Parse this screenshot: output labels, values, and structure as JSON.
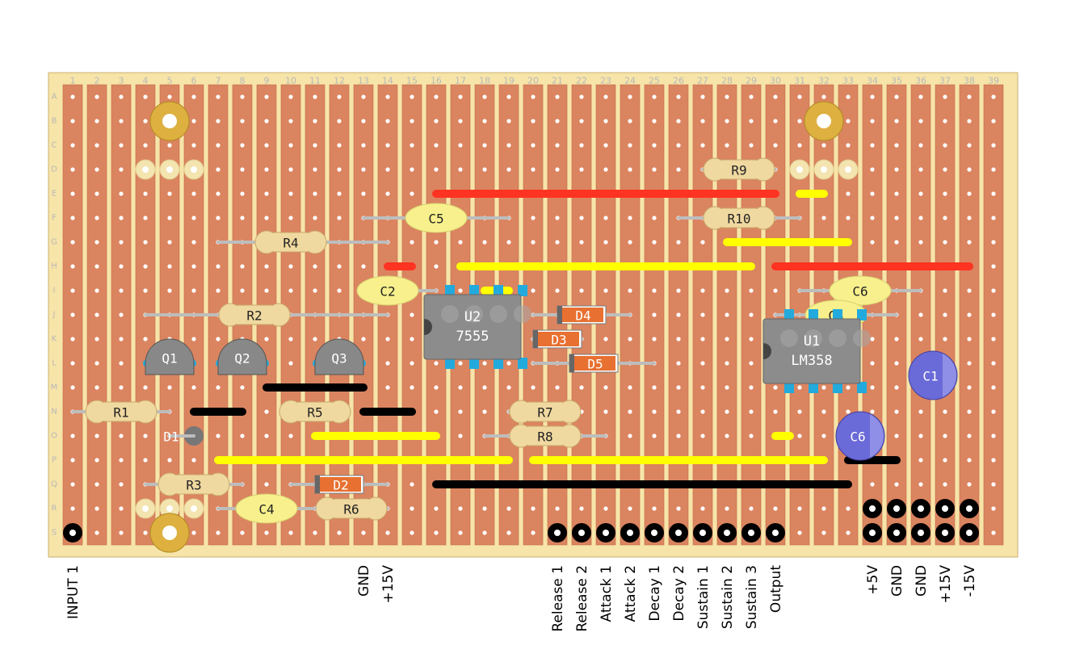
{
  "board": {
    "colors": {
      "board": "#f7e4a8",
      "strip": "#db8460",
      "strip_edge": "#c06a48",
      "hole": "#ffffff",
      "red": "#ff3322",
      "yellow": "#ffff00",
      "black": "#000000",
      "resistor": "#f0d9a0",
      "cap": "#f7f08c",
      "electro": "#6a6ad8",
      "transistor": "#888888",
      "ic": "#8c8c8c",
      "pin": "#22aadd",
      "diode": "#e87030",
      "pad": "#ddb040"
    },
    "column_labels": [
      "1",
      "2",
      "3",
      "4",
      "5",
      "6",
      "7",
      "8",
      "9",
      "10",
      "11",
      "12",
      "13",
      "14",
      "15",
      "16",
      "17",
      "18",
      "19",
      "20",
      "21",
      "22",
      "23",
      "24",
      "25",
      "26",
      "27",
      "28",
      "29",
      "30",
      "31",
      "32",
      "33",
      "34",
      "35",
      "36",
      "37",
      "38",
      "39"
    ],
    "row_labels": [
      "A",
      "B",
      "C",
      "D",
      "E",
      "F",
      "G",
      "H",
      "I",
      "J",
      "K",
      "L",
      "M",
      "N",
      "O",
      "P",
      "Q",
      "R",
      "S"
    ]
  },
  "wires": [
    {
      "color": "red",
      "row": 4,
      "from": 16,
      "to": 30
    },
    {
      "color": "yellow",
      "row": 4,
      "from": 31,
      "to": 32
    },
    {
      "color": "yellow",
      "row": 6,
      "from": 28,
      "to": 33
    },
    {
      "color": "red",
      "row": 7,
      "from": 14,
      "to": 15
    },
    {
      "color": "yellow",
      "row": 7,
      "from": 17,
      "to": 29
    },
    {
      "color": "red",
      "row": 7,
      "from": 30,
      "to": 38
    },
    {
      "color": "yellow",
      "row": 8,
      "from": 18,
      "to": 19
    },
    {
      "color": "black",
      "row": 12,
      "from": 9,
      "to": 13
    },
    {
      "color": "black",
      "row": 13,
      "from": 6,
      "to": 8
    },
    {
      "color": "black",
      "row": 13,
      "from": 13,
      "to": 15
    },
    {
      "color": "yellow",
      "row": 14,
      "from": 11,
      "to": 16
    },
    {
      "color": "yellow",
      "row": 14,
      "from": 30,
      "to": 30.6
    },
    {
      "color": "yellow",
      "row": 15,
      "from": 7,
      "to": 19
    },
    {
      "color": "yellow",
      "row": 15,
      "from": 20,
      "to": 32
    },
    {
      "color": "black",
      "row": 15,
      "from": 33,
      "to": 35
    },
    {
      "color": "black",
      "row": 16,
      "from": 16,
      "to": 33
    }
  ],
  "resistors": [
    {
      "label": "R1",
      "row": 13,
      "from": 1,
      "to": 5,
      "body": 3
    },
    {
      "label": "R2",
      "row": 9,
      "from": 4,
      "to": 14,
      "body": 8.5
    },
    {
      "label": "R3",
      "row": 16,
      "from": 4,
      "to": 8,
      "body": 6
    },
    {
      "label": "R4",
      "row": 6,
      "from": 7,
      "to": 14,
      "body": 10
    },
    {
      "label": "R5",
      "row": 13,
      "from": 10,
      "to": 12,
      "body": 11
    },
    {
      "label": "R6",
      "row": 17,
      "from": 12,
      "to": 14,
      "body": 12.5
    },
    {
      "label": "R7",
      "row": 13,
      "from": 19,
      "to": 21,
      "body": 20.5
    },
    {
      "label": "R8",
      "row": 14,
      "from": 18,
      "to": 23,
      "body": 20.5
    },
    {
      "label": "R9",
      "row": 3,
      "from": 27,
      "to": 30,
      "body": 28.5
    },
    {
      "label": "R10",
      "row": 5,
      "from": 26,
      "to": 31,
      "body": 28.5
    }
  ],
  "capacitors": [
    {
      "label": "C5",
      "row": 5,
      "from": 13,
      "to": 19,
      "body": 16
    },
    {
      "label": "C2",
      "row": 8,
      "from": 13,
      "to": 16,
      "body": 14
    },
    {
      "label": "C4",
      "row": 17,
      "from": 7,
      "to": 11,
      "body": 9
    },
    {
      "label": "C6",
      "row": 8,
      "from": 31,
      "to": 36,
      "body": 33.5
    },
    {
      "label": "C3",
      "row": 9,
      "from": 30,
      "to": 35,
      "body": 32.5
    }
  ],
  "electrolytics": [
    {
      "label": "C1",
      "col": 36.5,
      "row": 11.5,
      "r": 30
    },
    {
      "label": "C6",
      "col": 33.5,
      "row": 14,
      "r": 30
    }
  ],
  "diodes": [
    {
      "label": "D2",
      "row": 16,
      "from": 10,
      "to": 14,
      "body": 12
    },
    {
      "label": "D4",
      "row": 9,
      "from": 20,
      "to": 24,
      "body": 22
    },
    {
      "label": "D3",
      "row": 10,
      "from": 20,
      "to": 22,
      "body": 21
    },
    {
      "label": "D5",
      "row": 11,
      "from": 20,
      "to": 25,
      "body": 22.5
    }
  ],
  "diode_small": {
    "label": "D1",
    "row": 14,
    "col": 6
  },
  "transistors": [
    {
      "label": "Q1",
      "col": 5,
      "row": 11
    },
    {
      "label": "Q2",
      "col": 8,
      "row": 11
    },
    {
      "label": "Q3",
      "col": 12,
      "row": 11
    }
  ],
  "ics": [
    {
      "name": "U2",
      "part": "7555",
      "col": 17,
      "row": 10
    },
    {
      "name": "U1",
      "part": "LM358",
      "col": 31,
      "row": 11
    }
  ],
  "pots": [
    {
      "col": 5,
      "row": 1
    },
    {
      "col": 5,
      "row": 18
    },
    {
      "col": 32,
      "row": 1
    }
  ],
  "pot_pads": [
    {
      "row": 3,
      "cols": [
        4,
        5,
        6
      ]
    },
    {
      "row": 17,
      "cols": [
        4,
        5,
        6
      ]
    },
    {
      "row": 3,
      "cols": [
        31,
        32,
        33
      ]
    }
  ],
  "terminals": [
    {
      "col": 1,
      "row": 18
    },
    {
      "col": 21,
      "row": 18
    },
    {
      "col": 22,
      "row": 18
    },
    {
      "col": 23,
      "row": 18
    },
    {
      "col": 24,
      "row": 18
    },
    {
      "col": 25,
      "row": 18
    },
    {
      "col": 26,
      "row": 18
    },
    {
      "col": 27,
      "row": 18
    },
    {
      "col": 28,
      "row": 18
    },
    {
      "col": 29,
      "row": 18
    },
    {
      "col": 30,
      "row": 18
    },
    {
      "col": 34,
      "row": 17
    },
    {
      "col": 35,
      "row": 17
    },
    {
      "col": 36,
      "row": 17
    },
    {
      "col": 37,
      "row": 17
    },
    {
      "col": 38,
      "row": 17
    },
    {
      "col": 34,
      "row": 18
    },
    {
      "col": 35,
      "row": 18
    },
    {
      "col": 36,
      "row": 18
    },
    {
      "col": 37,
      "row": 18
    },
    {
      "col": 38,
      "row": 18
    }
  ],
  "bottom_labels": [
    {
      "col": 1,
      "text": "INPUT 1"
    },
    {
      "col": 13,
      "text": "GND"
    },
    {
      "col": 14,
      "text": "+15V"
    },
    {
      "col": 21,
      "text": "Release 1"
    },
    {
      "col": 22,
      "text": "Release 2"
    },
    {
      "col": 23,
      "text": "Attack 1"
    },
    {
      "col": 24,
      "text": "Attack 2"
    },
    {
      "col": 25,
      "text": "Decay 1"
    },
    {
      "col": 26,
      "text": "Decay 2"
    },
    {
      "col": 27,
      "text": "Sustain 1"
    },
    {
      "col": 28,
      "text": "Sustain 2"
    },
    {
      "col": 29,
      "text": "Sustain 3"
    },
    {
      "col": 30,
      "text": "Output"
    },
    {
      "col": 34,
      "text": "+5V"
    },
    {
      "col": 35,
      "text": "GND"
    },
    {
      "col": 36,
      "text": "GND"
    },
    {
      "col": 37,
      "text": "+15V"
    },
    {
      "col": 38,
      "text": "-15V"
    }
  ]
}
